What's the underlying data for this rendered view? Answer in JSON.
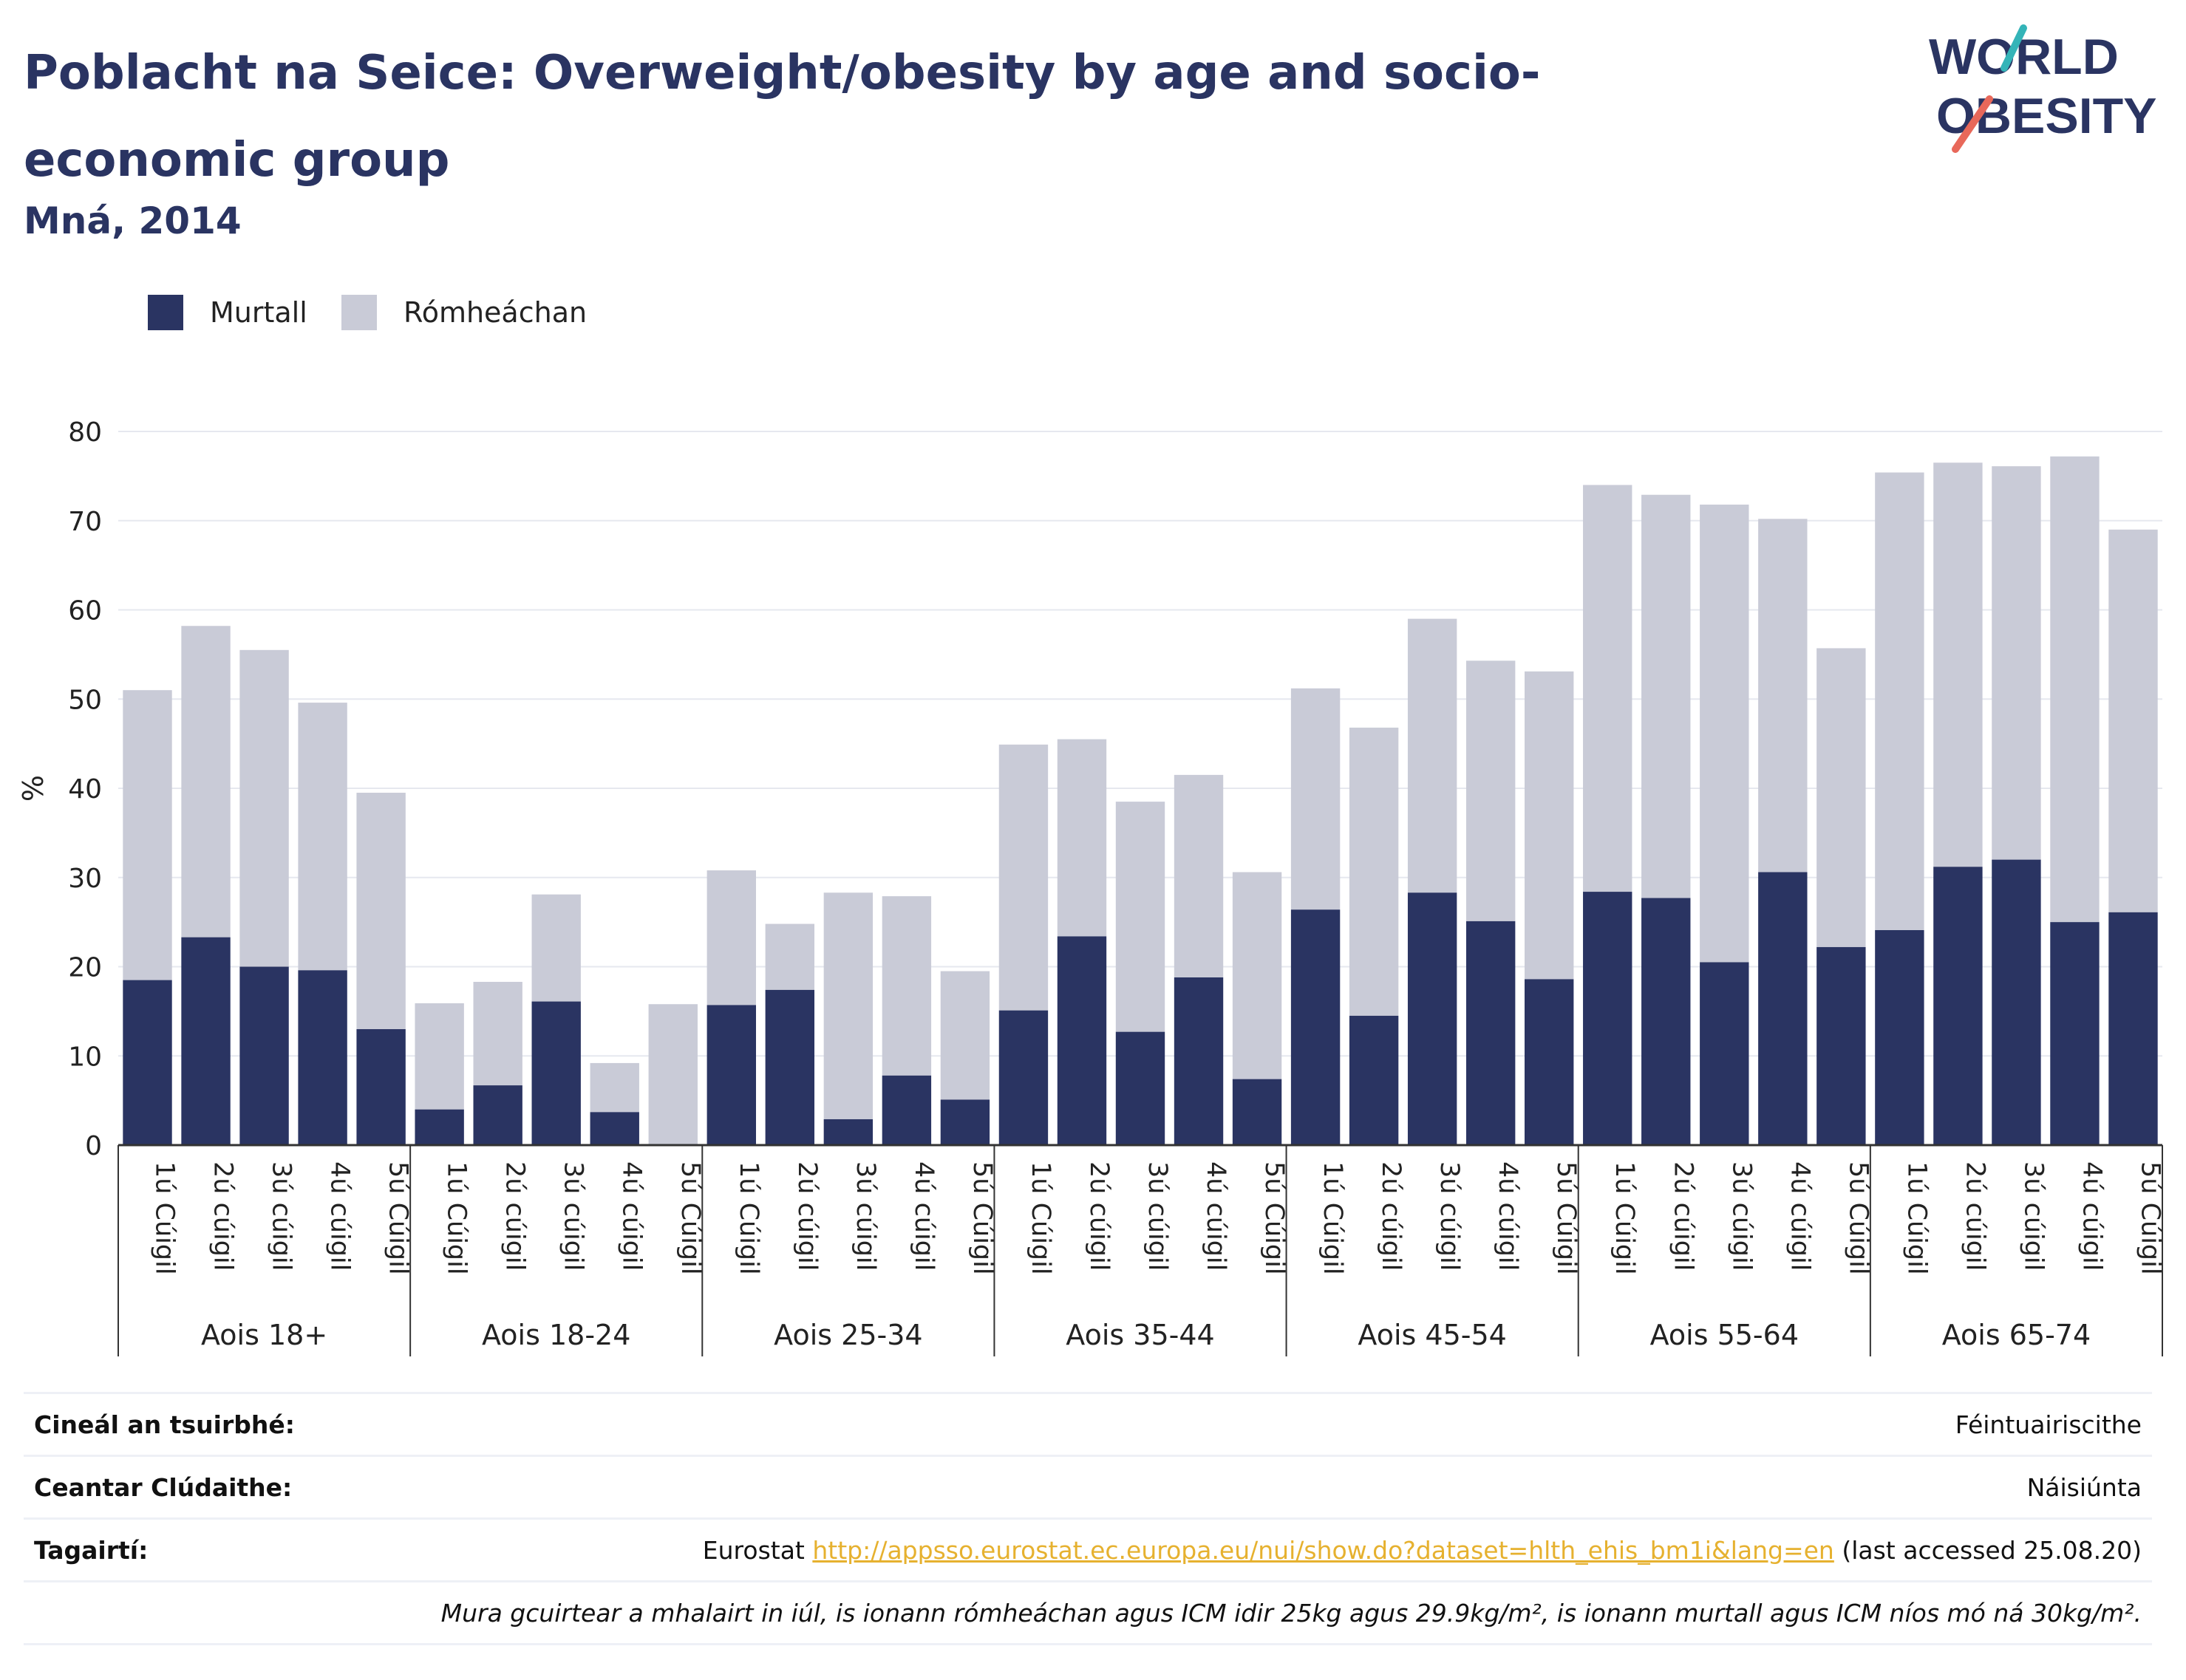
{
  "header": {
    "title": "Poblacht na Seice: Overweight/obesity by age and socio-economic group",
    "subtitle": "Mná, 2014"
  },
  "logo": {
    "line1": "WORLD",
    "line2": "OBESITY",
    "colors": {
      "text": "#2a3462",
      "slash_top": "#34b4b8",
      "slash_bottom": "#e8685a"
    }
  },
  "legend": {
    "items": [
      {
        "label": "Murtall",
        "color": "#2a3462"
      },
      {
        "label": "Rómheáchan",
        "color": "#c9cbd7"
      }
    ]
  },
  "chart_data": {
    "type": "bar",
    "stacked": true,
    "ylabel": "%",
    "ylim": [
      0,
      80
    ],
    "yticks": [
      0,
      10,
      20,
      30,
      40,
      50,
      60,
      70,
      80
    ],
    "grid": true,
    "legend_position": "top-left",
    "groups": [
      {
        "label": "Aois 18+",
        "categories": [
          "1ú Cúigil",
          "2ú cúigil",
          "3ú cúigil",
          "4ú cúigil",
          "5ú Cúigil"
        ],
        "murtall": [
          18.5,
          23.3,
          20.0,
          19.6,
          13.0
        ],
        "total": [
          51.0,
          58.2,
          55.5,
          49.6,
          39.5
        ]
      },
      {
        "label": "Aois 18-24",
        "categories": [
          "1ú Cúigil",
          "2ú cúigil",
          "3ú cúigil",
          "4ú cúigil",
          "5ú Cúigil"
        ],
        "murtall": [
          4.0,
          6.7,
          16.1,
          3.7,
          0.0
        ],
        "total": [
          15.9,
          18.3,
          28.1,
          9.2,
          15.8
        ]
      },
      {
        "label": "Aois 25-34",
        "categories": [
          "1ú Cúigil",
          "2ú cúigil",
          "3ú cúigil",
          "4ú cúigil",
          "5ú Cúigil"
        ],
        "murtall": [
          15.7,
          17.4,
          2.9,
          7.8,
          5.1
        ],
        "total": [
          30.8,
          24.8,
          28.3,
          27.9,
          19.5
        ]
      },
      {
        "label": "Aois 35-44",
        "categories": [
          "1ú Cúigil",
          "2ú cúigil",
          "3ú cúigil",
          "4ú cúigil",
          "5ú Cúigil"
        ],
        "murtall": [
          15.1,
          23.4,
          12.7,
          18.8,
          7.4
        ],
        "total": [
          44.9,
          45.5,
          38.5,
          41.5,
          30.6
        ]
      },
      {
        "label": "Aois 45-54",
        "categories": [
          "1ú Cúigil",
          "2ú cúigil",
          "3ú cúigil",
          "4ú cúigil",
          "5ú Cúigil"
        ],
        "murtall": [
          26.4,
          14.5,
          28.3,
          25.1,
          18.6
        ],
        "total": [
          51.2,
          46.8,
          59.0,
          54.3,
          53.1
        ]
      },
      {
        "label": "Aois 55-64",
        "categories": [
          "1ú Cúigil",
          "2ú cúigil",
          "3ú cúigil",
          "4ú cúigil",
          "5ú Cúigil"
        ],
        "murtall": [
          28.4,
          27.7,
          20.5,
          30.6,
          22.2
        ],
        "total": [
          74.0,
          72.9,
          71.8,
          70.2,
          55.7
        ]
      },
      {
        "label": "Aois 65-74",
        "categories": [
          "1ú Cúigil",
          "2ú cúigil",
          "3ú cúigil",
          "4ú cúigil",
          "5ú Cúigil"
        ],
        "murtall": [
          24.1,
          31.2,
          32.0,
          25.0,
          26.1
        ],
        "total": [
          75.4,
          76.5,
          76.1,
          77.2,
          69.0
        ]
      }
    ]
  },
  "info": {
    "survey_type_label": "Cineál an tsuirbhé:",
    "survey_type_value": "Féintuairiscithe",
    "coverage_label": "Ceantar Clúdaithe:",
    "coverage_value": "Náisiúnta",
    "references_label": "Tagairtí:",
    "references_source": "Eurostat",
    "references_link": "http://appsso.eurostat.ec.europa.eu/nui/show.do?dataset=hlth_ehis_bm1i&lang=en",
    "references_accessed": "(last accessed 25.08.20)",
    "note": "Mura gcuirtear a mhalairt in iúl, is ionann rómheáchan agus ICM idir 25kg agus 29.9kg/m², is ionann murtall agus ICM níos mó ná 30kg/m²."
  }
}
